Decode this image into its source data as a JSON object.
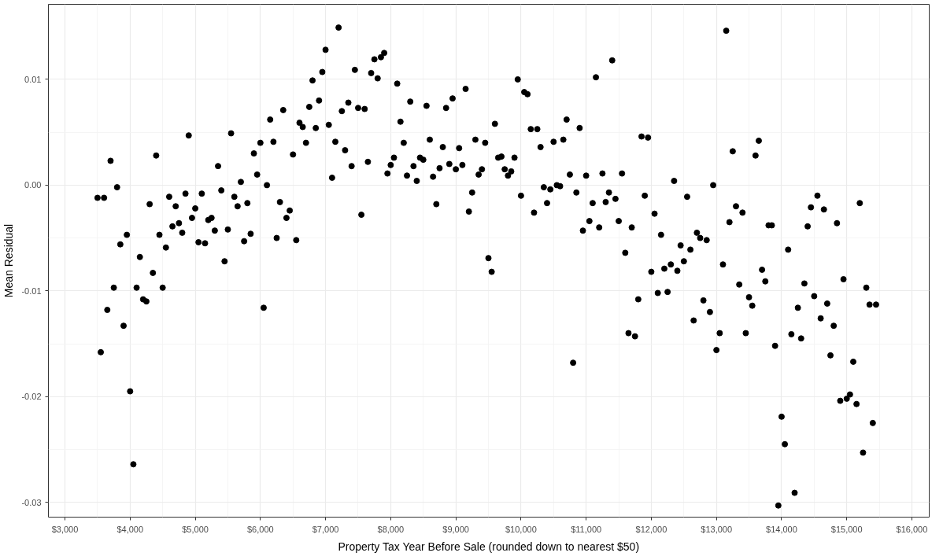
{
  "chart_data": {
    "type": "scatter",
    "xlabel": "Property Tax Year Before Sale (rounded down to nearest $50)",
    "ylabel": "Mean Residual",
    "color": "#000000",
    "marker": "circle",
    "grid": true,
    "xlim": [
      2746,
      16266
    ],
    "ylim": [
      -0.0314,
      0.0171
    ],
    "xticks": [
      {
        "value": 3000,
        "label": "$3,000"
      },
      {
        "value": 4000,
        "label": "$4,000"
      },
      {
        "value": 5000,
        "label": "$5,000"
      },
      {
        "value": 6000,
        "label": "$6,000"
      },
      {
        "value": 7000,
        "label": "$7,000"
      },
      {
        "value": 8000,
        "label": "$8,000"
      },
      {
        "value": 9000,
        "label": "$9,000"
      },
      {
        "value": 10000,
        "label": "$10,000"
      },
      {
        "value": 11000,
        "label": "$11,000"
      },
      {
        "value": 12000,
        "label": "$12,000"
      },
      {
        "value": 13000,
        "label": "$13,000"
      },
      {
        "value": 14000,
        "label": "$14,000"
      },
      {
        "value": 15000,
        "label": "$15,000"
      },
      {
        "value": 16000,
        "label": "$16,000"
      }
    ],
    "yticks": [
      -0.03,
      -0.02,
      -0.01,
      {
        "value": 0,
        "label": "0.00"
      },
      0.01
    ],
    "x": [
      3500,
      3550,
      3600,
      3650,
      3700,
      3750,
      3800,
      3850,
      3900,
      3950,
      4000,
      4050,
      4100,
      4150,
      4200,
      4250,
      4300,
      4350,
      4400,
      4450,
      4500,
      4550,
      4600,
      4650,
      4700,
      4750,
      4800,
      4850,
      4900,
      4950,
      5000,
      5050,
      5100,
      5150,
      5200,
      5250,
      5300,
      5350,
      5400,
      5450,
      5500,
      5550,
      5600,
      5650,
      5700,
      5750,
      5800,
      5850,
      5900,
      5950,
      6000,
      6050,
      6100,
      6150,
      6200,
      6250,
      6300,
      6350,
      6400,
      6450,
      6500,
      6550,
      6600,
      6650,
      6700,
      6750,
      6800,
      6850,
      6900,
      6950,
      7000,
      7050,
      7100,
      7150,
      7200,
      7250,
      7300,
      7350,
      7400,
      7450,
      7500,
      7550,
      7600,
      7650,
      7700,
      7750,
      7800,
      7850,
      7900,
      7950,
      8000,
      8050,
      8100,
      8150,
      8200,
      8250,
      8300,
      8350,
      8400,
      8450,
      8500,
      8550,
      8600,
      8650,
      8700,
      8750,
      8800,
      8850,
      8900,
      8950,
      9000,
      9050,
      9100,
      9150,
      9200,
      9250,
      9300,
      9350,
      9400,
      9450,
      9500,
      9550,
      9600,
      9650,
      9700,
      9750,
      9800,
      9850,
      9900,
      9950,
      10000,
      10050,
      10100,
      10150,
      10200,
      10250,
      10300,
      10350,
      10400,
      10450,
      10500,
      10550,
      10600,
      10650,
      10700,
      10750,
      10800,
      10850,
      10900,
      10950,
      11000,
      11050,
      11100,
      11150,
      11200,
      11250,
      11300,
      11350,
      11400,
      11450,
      11500,
      11550,
      11600,
      11650,
      11700,
      11750,
      11800,
      11850,
      11900,
      11950,
      12000,
      12050,
      12100,
      12150,
      12200,
      12250,
      12300,
      12350,
      12400,
      12450,
      12500,
      12550,
      12600,
      12650,
      12700,
      12750,
      12800,
      12850,
      12900,
      12950,
      13000,
      13050,
      13100,
      13150,
      13200,
      13250,
      13300,
      13350,
      13400,
      13450,
      13500,
      13550,
      13600,
      13650,
      13700,
      13750,
      13800,
      13850,
      13900,
      13950,
      14000,
      14050,
      14100,
      14150,
      14200,
      14250,
      14300,
      14350,
      14400,
      14450,
      14500,
      14550,
      14600,
      14650,
      14700,
      14750,
      14800,
      14850,
      14900,
      14950,
      15000,
      15050,
      15100,
      15150,
      15200,
      15250,
      15300,
      15350,
      15400,
      15450
    ],
    "values": [
      -0.0012,
      -0.0158,
      -0.0012,
      -0.0118,
      0.0023,
      -0.0097,
      -0.0002,
      -0.0056,
      -0.0133,
      -0.0047,
      -0.0195,
      -0.0264,
      -0.0097,
      -0.0068,
      -0.0108,
      -0.011,
      -0.0018,
      -0.0083,
      0.0028,
      -0.0047,
      -0.0097,
      -0.0059,
      -0.0011,
      -0.0039,
      -0.002,
      -0.0036,
      -0.0045,
      -0.0008,
      0.0047,
      -0.0031,
      -0.0022,
      -0.0054,
      -0.0008,
      -0.0055,
      -0.0033,
      -0.0031,
      -0.0043,
      0.0018,
      -0.0005,
      -0.0072,
      -0.0042,
      0.0049,
      -0.0011,
      -0.002,
      0.0003,
      -0.0053,
      -0.0017,
      -0.0046,
      0.003,
      0.001,
      0.004,
      -0.0116,
      0.0,
      0.0062,
      0.0041,
      -0.005,
      -0.0016,
      0.0071,
      -0.0031,
      -0.0024,
      0.0029,
      -0.0052,
      0.0059,
      0.0055,
      0.004,
      0.0074,
      0.0099,
      0.0054,
      0.008,
      0.0107,
      0.0128,
      0.0057,
      0.0007,
      0.0041,
      0.0149,
      0.007,
      0.0033,
      0.0078,
      0.0018,
      0.0109,
      0.0073,
      -0.0028,
      0.0072,
      0.0022,
      0.0106,
      0.0119,
      0.0101,
      0.0121,
      0.0125,
      0.0011,
      0.0019,
      0.0026,
      0.0096,
      0.006,
      0.004,
      0.0009,
      0.0079,
      0.0018,
      0.0004,
      0.0026,
      0.0024,
      0.0075,
      0.0043,
      0.0008,
      -0.0018,
      0.0016,
      0.0036,
      0.0073,
      0.002,
      0.0082,
      0.0015,
      0.0035,
      0.0019,
      0.0091,
      -0.0025,
      -0.0007,
      0.0043,
      0.001,
      0.0015,
      0.004,
      -0.0069,
      -0.0082,
      0.0058,
      0.0026,
      0.0027,
      0.0015,
      0.0009,
      0.0013,
      0.0026,
      0.01,
      -0.001,
      0.0088,
      0.0086,
      0.0053,
      -0.0026,
      0.0053,
      0.0036,
      -0.0002,
      -0.0017,
      -0.0004,
      0.0041,
      0.0,
      -0.0001,
      0.0043,
      0.0062,
      0.001,
      -0.0168,
      -0.0007,
      0.0054,
      -0.0043,
      0.0009,
      -0.0034,
      -0.0017,
      0.0102,
      -0.004,
      0.0011,
      -0.0016,
      -0.0007,
      0.0118,
      -0.0013,
      -0.0034,
      0.0011,
      -0.0064,
      -0.014,
      -0.004,
      -0.0143,
      -0.0108,
      0.0046,
      -0.001,
      0.0045,
      -0.0082,
      -0.0027,
      -0.0102,
      -0.0047,
      -0.0079,
      -0.0101,
      -0.0075,
      0.0004,
      -0.0081,
      -0.0057,
      -0.0072,
      -0.0011,
      -0.0061,
      -0.0128,
      -0.0045,
      -0.005,
      -0.0109,
      -0.0052,
      -0.012,
      0.0,
      -0.0156,
      -0.014,
      -0.0075,
      0.0146,
      -0.0035,
      0.0032,
      -0.002,
      -0.0094,
      -0.0026,
      -0.014,
      -0.0106,
      -0.0114,
      0.0028,
      0.0042,
      -0.008,
      -0.0091,
      -0.0038,
      -0.0038,
      -0.0152,
      -0.0303,
      -0.0219,
      -0.0245,
      -0.0061,
      -0.0141,
      -0.0291,
      -0.0116,
      -0.0145,
      -0.0093,
      -0.0039,
      -0.0021,
      -0.0105,
      -0.001,
      -0.0126,
      -0.0023,
      -0.0112,
      -0.0161,
      -0.0133,
      -0.0036,
      -0.0204,
      -0.0089,
      -0.0202,
      -0.0198,
      -0.0167,
      -0.0207,
      -0.0017,
      -0.0253,
      -0.0097,
      -0.0113,
      -0.0225,
      -0.0113
    ]
  }
}
